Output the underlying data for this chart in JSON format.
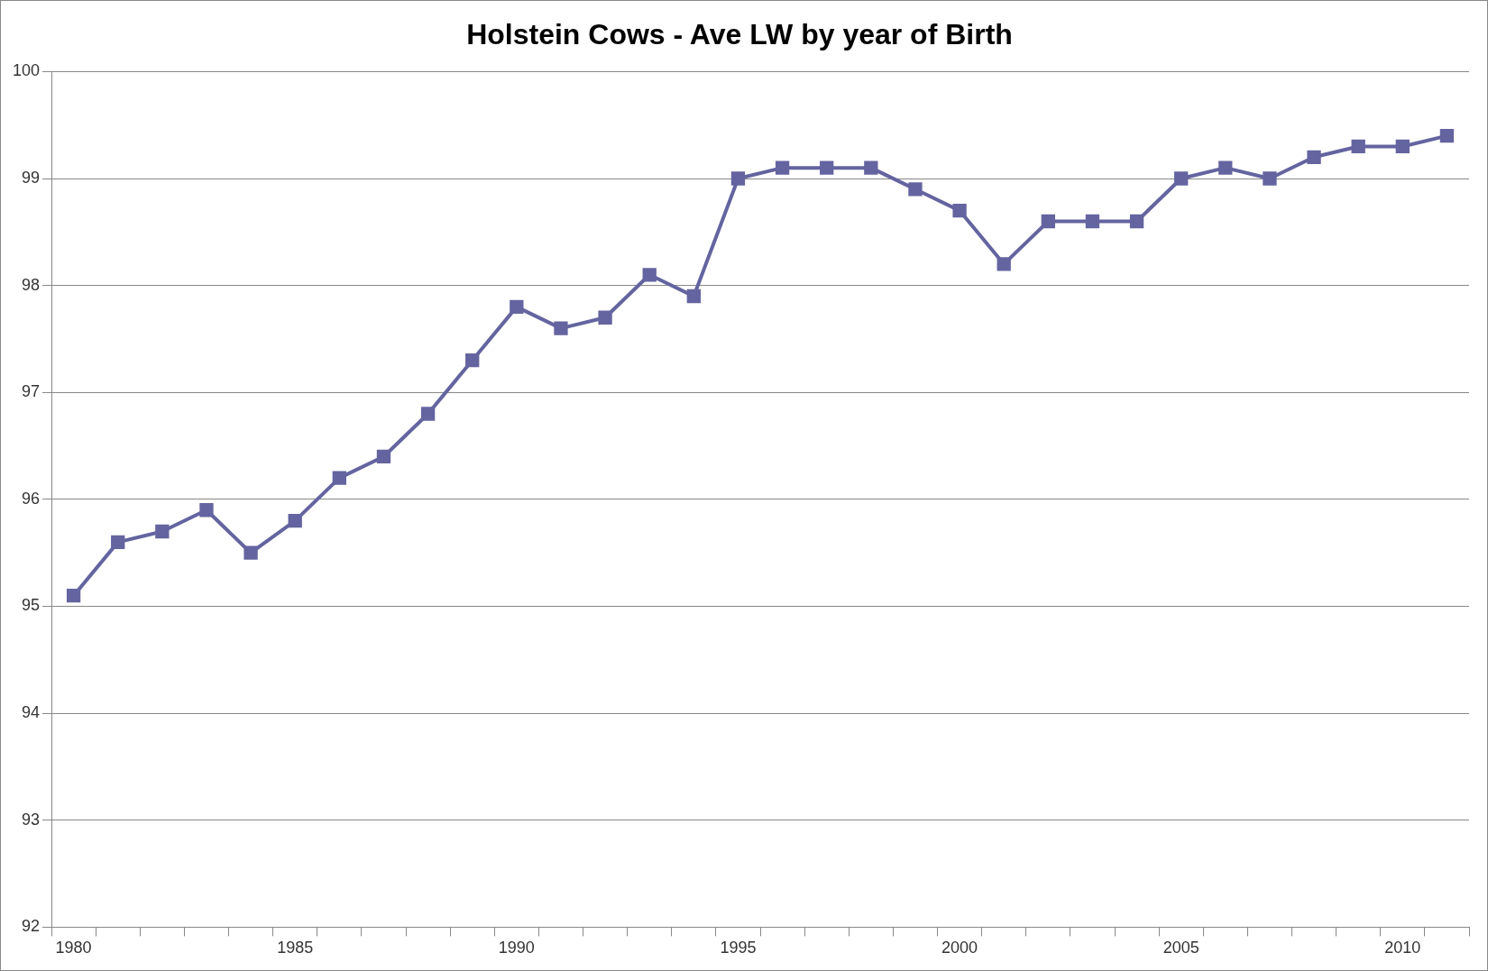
{
  "chart_data": {
    "type": "line",
    "title": "Holstein Cows - Ave LW by year of Birth",
    "categories": [
      "1980",
      null,
      null,
      null,
      null,
      "1985",
      null,
      null,
      null,
      null,
      "1990",
      null,
      null,
      null,
      null,
      "1995",
      null,
      null,
      null,
      null,
      "2000",
      null,
      null,
      null,
      null,
      "2005",
      null,
      null,
      null,
      null,
      "2010",
      null
    ],
    "series": [
      {
        "color": "#6464a0",
        "values": [
          95.1,
          95.6,
          95.7,
          95.9,
          95.5,
          95.8,
          96.2,
          96.4,
          96.8,
          97.3,
          97.8,
          97.6,
          97.7,
          98.1,
          97.9,
          99.0,
          99.1,
          99.1,
          99.1,
          98.9,
          98.7,
          98.2,
          98.6,
          98.6,
          98.6,
          99.0,
          99.1,
          99.0,
          99.2,
          99.3,
          99.3,
          99.4
        ]
      }
    ],
    "ylim": [
      92,
      100
    ],
    "yticks": [
      92,
      93,
      94,
      95,
      96,
      97,
      98,
      99,
      100
    ],
    "grid": "y",
    "legend": false,
    "marker": "square",
    "line_style": "solid"
  }
}
